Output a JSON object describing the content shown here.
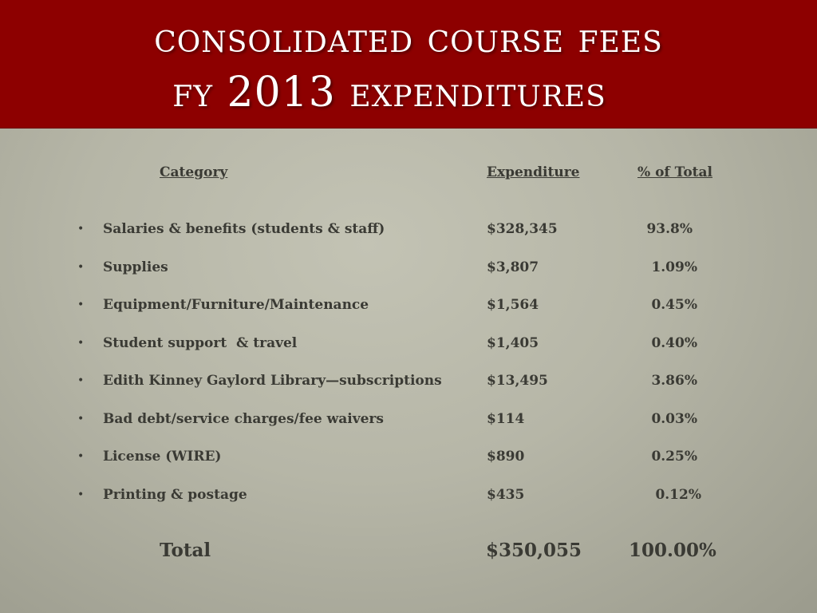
{
  "title": {
    "line1": "Consolidated Course Fees",
    "line2": "FY 2013 Expenditures"
  },
  "headers": {
    "category": " Category ",
    "expenditure": "Expenditure",
    "percent": "% of Total"
  },
  "rows": [
    {
      "category": "Salaries & benefits (students & staff)",
      "expenditure": "$328,345",
      "percent": "93.8%"
    },
    {
      "category": "Supplies",
      "expenditure": "$3,807",
      "percent": "1.09%"
    },
    {
      "category": "Equipment/Furniture/Maintenance",
      "expenditure": "$1,564",
      "percent": "0.45%"
    },
    {
      "category": "Student support  & travel",
      "expenditure": "$1,405",
      "percent": "0.40%"
    },
    {
      "category": "Edith Kinney Gaylord Library—subscriptions",
      "expenditure": "$13,495",
      "percent": "3.86%"
    },
    {
      "category": "Bad debt/service charges/fee waivers",
      "expenditure": "$114",
      "percent": "0.03%"
    },
    {
      "category": "License (WIRE)",
      "expenditure": "$890",
      "percent": "0.25%"
    },
    {
      "category": "Printing & postage",
      "expenditure": "$435",
      "percent": "0.12%"
    }
  ],
  "total": {
    "label": "Total",
    "expenditure": "$350,055",
    "percent": "100.00%"
  },
  "bullet": "•",
  "colors": {
    "title_bar": "#8d0000",
    "title_text": "#ffffff",
    "body_text": "#3a3a34",
    "background": "#b6b6a7"
  }
}
